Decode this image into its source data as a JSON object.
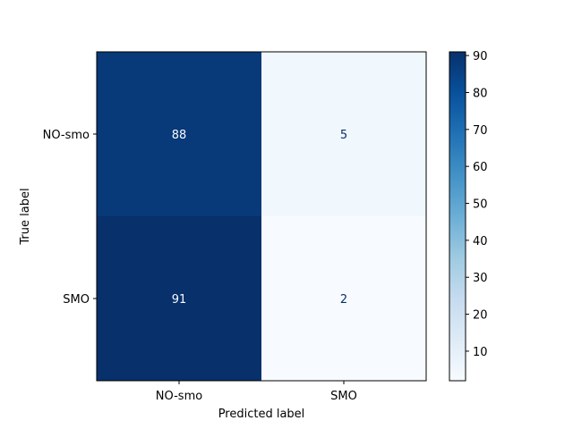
{
  "chart_data": {
    "type": "heatmap",
    "title": "",
    "xlabel": "Predicted label",
    "ylabel": "True label",
    "x_categories": [
      "NO-smo",
      "SMO"
    ],
    "y_categories": [
      "NO-smo",
      "SMO"
    ],
    "matrix": [
      [
        88,
        5
      ],
      [
        91,
        2
      ]
    ],
    "colormap": "Blues",
    "colorbar": {
      "min": 2,
      "max": 91,
      "ticks": [
        "10",
        "20",
        "30",
        "40",
        "50",
        "60",
        "70",
        "80",
        "90"
      ]
    },
    "grid": false
  }
}
